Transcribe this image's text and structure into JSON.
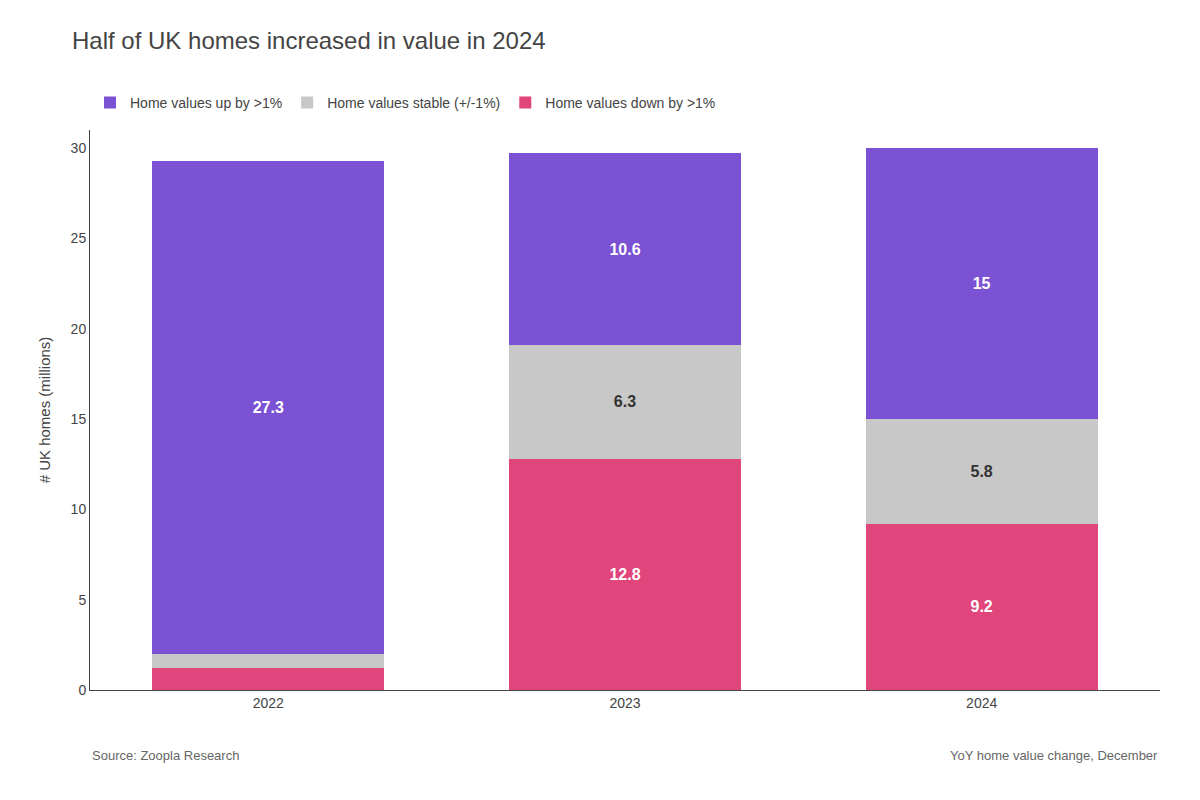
{
  "chart_data": {
    "type": "bar",
    "stacked": true,
    "title": "Half of UK homes increased in value in 2024",
    "y_label": "# UK homes (millions)",
    "categories": [
      "2022",
      "2023",
      "2024"
    ],
    "series": [
      {
        "name": "Home values down by >1%",
        "color": "#E0457B",
        "values": [
          1.2,
          12.8,
          9.2
        ],
        "value_labels": [
          null,
          "12.8",
          "9.2"
        ]
      },
      {
        "name": "Home values stable (+/-1%)",
        "color": "#C8C8C8",
        "values": [
          0.8,
          6.3,
          5.8
        ],
        "value_labels": [
          null,
          "6.3",
          "5.8"
        ]
      },
      {
        "name": "Home values up by >1%",
        "color": "#7B52D3",
        "values": [
          27.3,
          10.6,
          15.0
        ],
        "value_labels": [
          "27.3",
          "10.6",
          "15"
        ]
      }
    ],
    "ylim": [
      0,
      31
    ],
    "yticks": [
      0,
      5,
      10,
      15,
      20,
      25,
      30
    ],
    "grid": false,
    "data_labels": true,
    "annotations": [
      "Source: Zoopla Research",
      "YoY home value change, December"
    ]
  }
}
